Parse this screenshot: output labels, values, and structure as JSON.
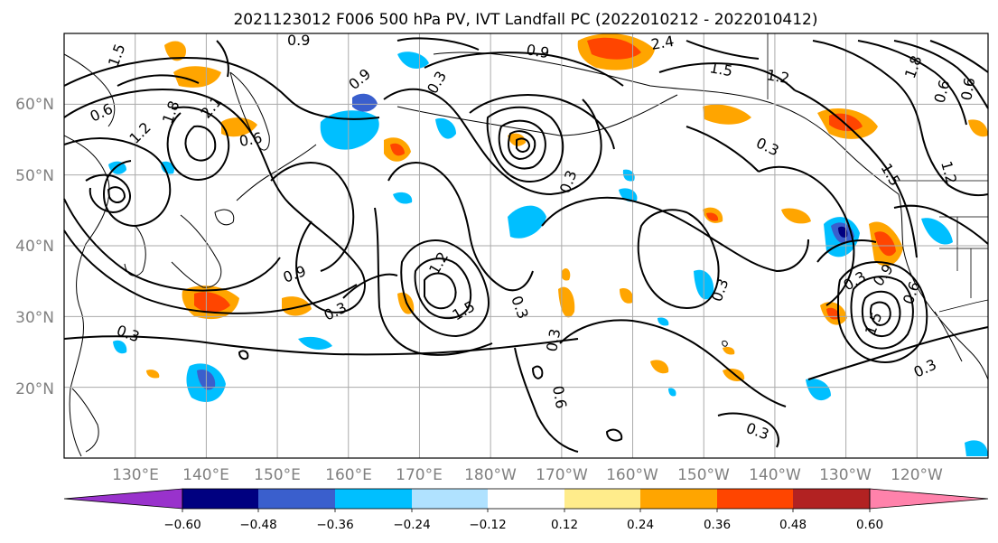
{
  "title": "2021123012 F006 500 hPa PV, IVT Landfall PC (2022010212 - 2022010412)",
  "lat_labels": [
    "60°N",
    "50°N",
    "40°N",
    "30°N",
    "20°N"
  ],
  "lon_labels": [
    "130°E",
    "140°E",
    "150°E",
    "160°E",
    "170°E",
    "180°W",
    "170°W",
    "160°W",
    "150°W",
    "140°W",
    "130°W",
    "120°W"
  ],
  "map_extent": {
    "lon_min": 120,
    "lon_max": 250,
    "lat_min": 10,
    "lat_max": 70
  },
  "colorbar": {
    "levels": [
      "−0.60",
      "−0.48",
      "−0.36",
      "−0.24",
      "−0.12",
      "0.12",
      "0.24",
      "0.36",
      "0.48",
      "0.60"
    ],
    "colors": [
      "#9932CC",
      "#000080",
      "#3A5FCD",
      "#00BFFF",
      "#B0E2FF",
      "#FFFFFF",
      "#FFEC8B",
      "#FFA500",
      "#FF4500",
      "#B22222",
      "#FF82AB"
    ]
  },
  "contour_labels": [
    "0.3",
    "0.6",
    "0.9",
    "1.2",
    "1.5",
    "1.8",
    "2.1",
    "2.4"
  ]
}
